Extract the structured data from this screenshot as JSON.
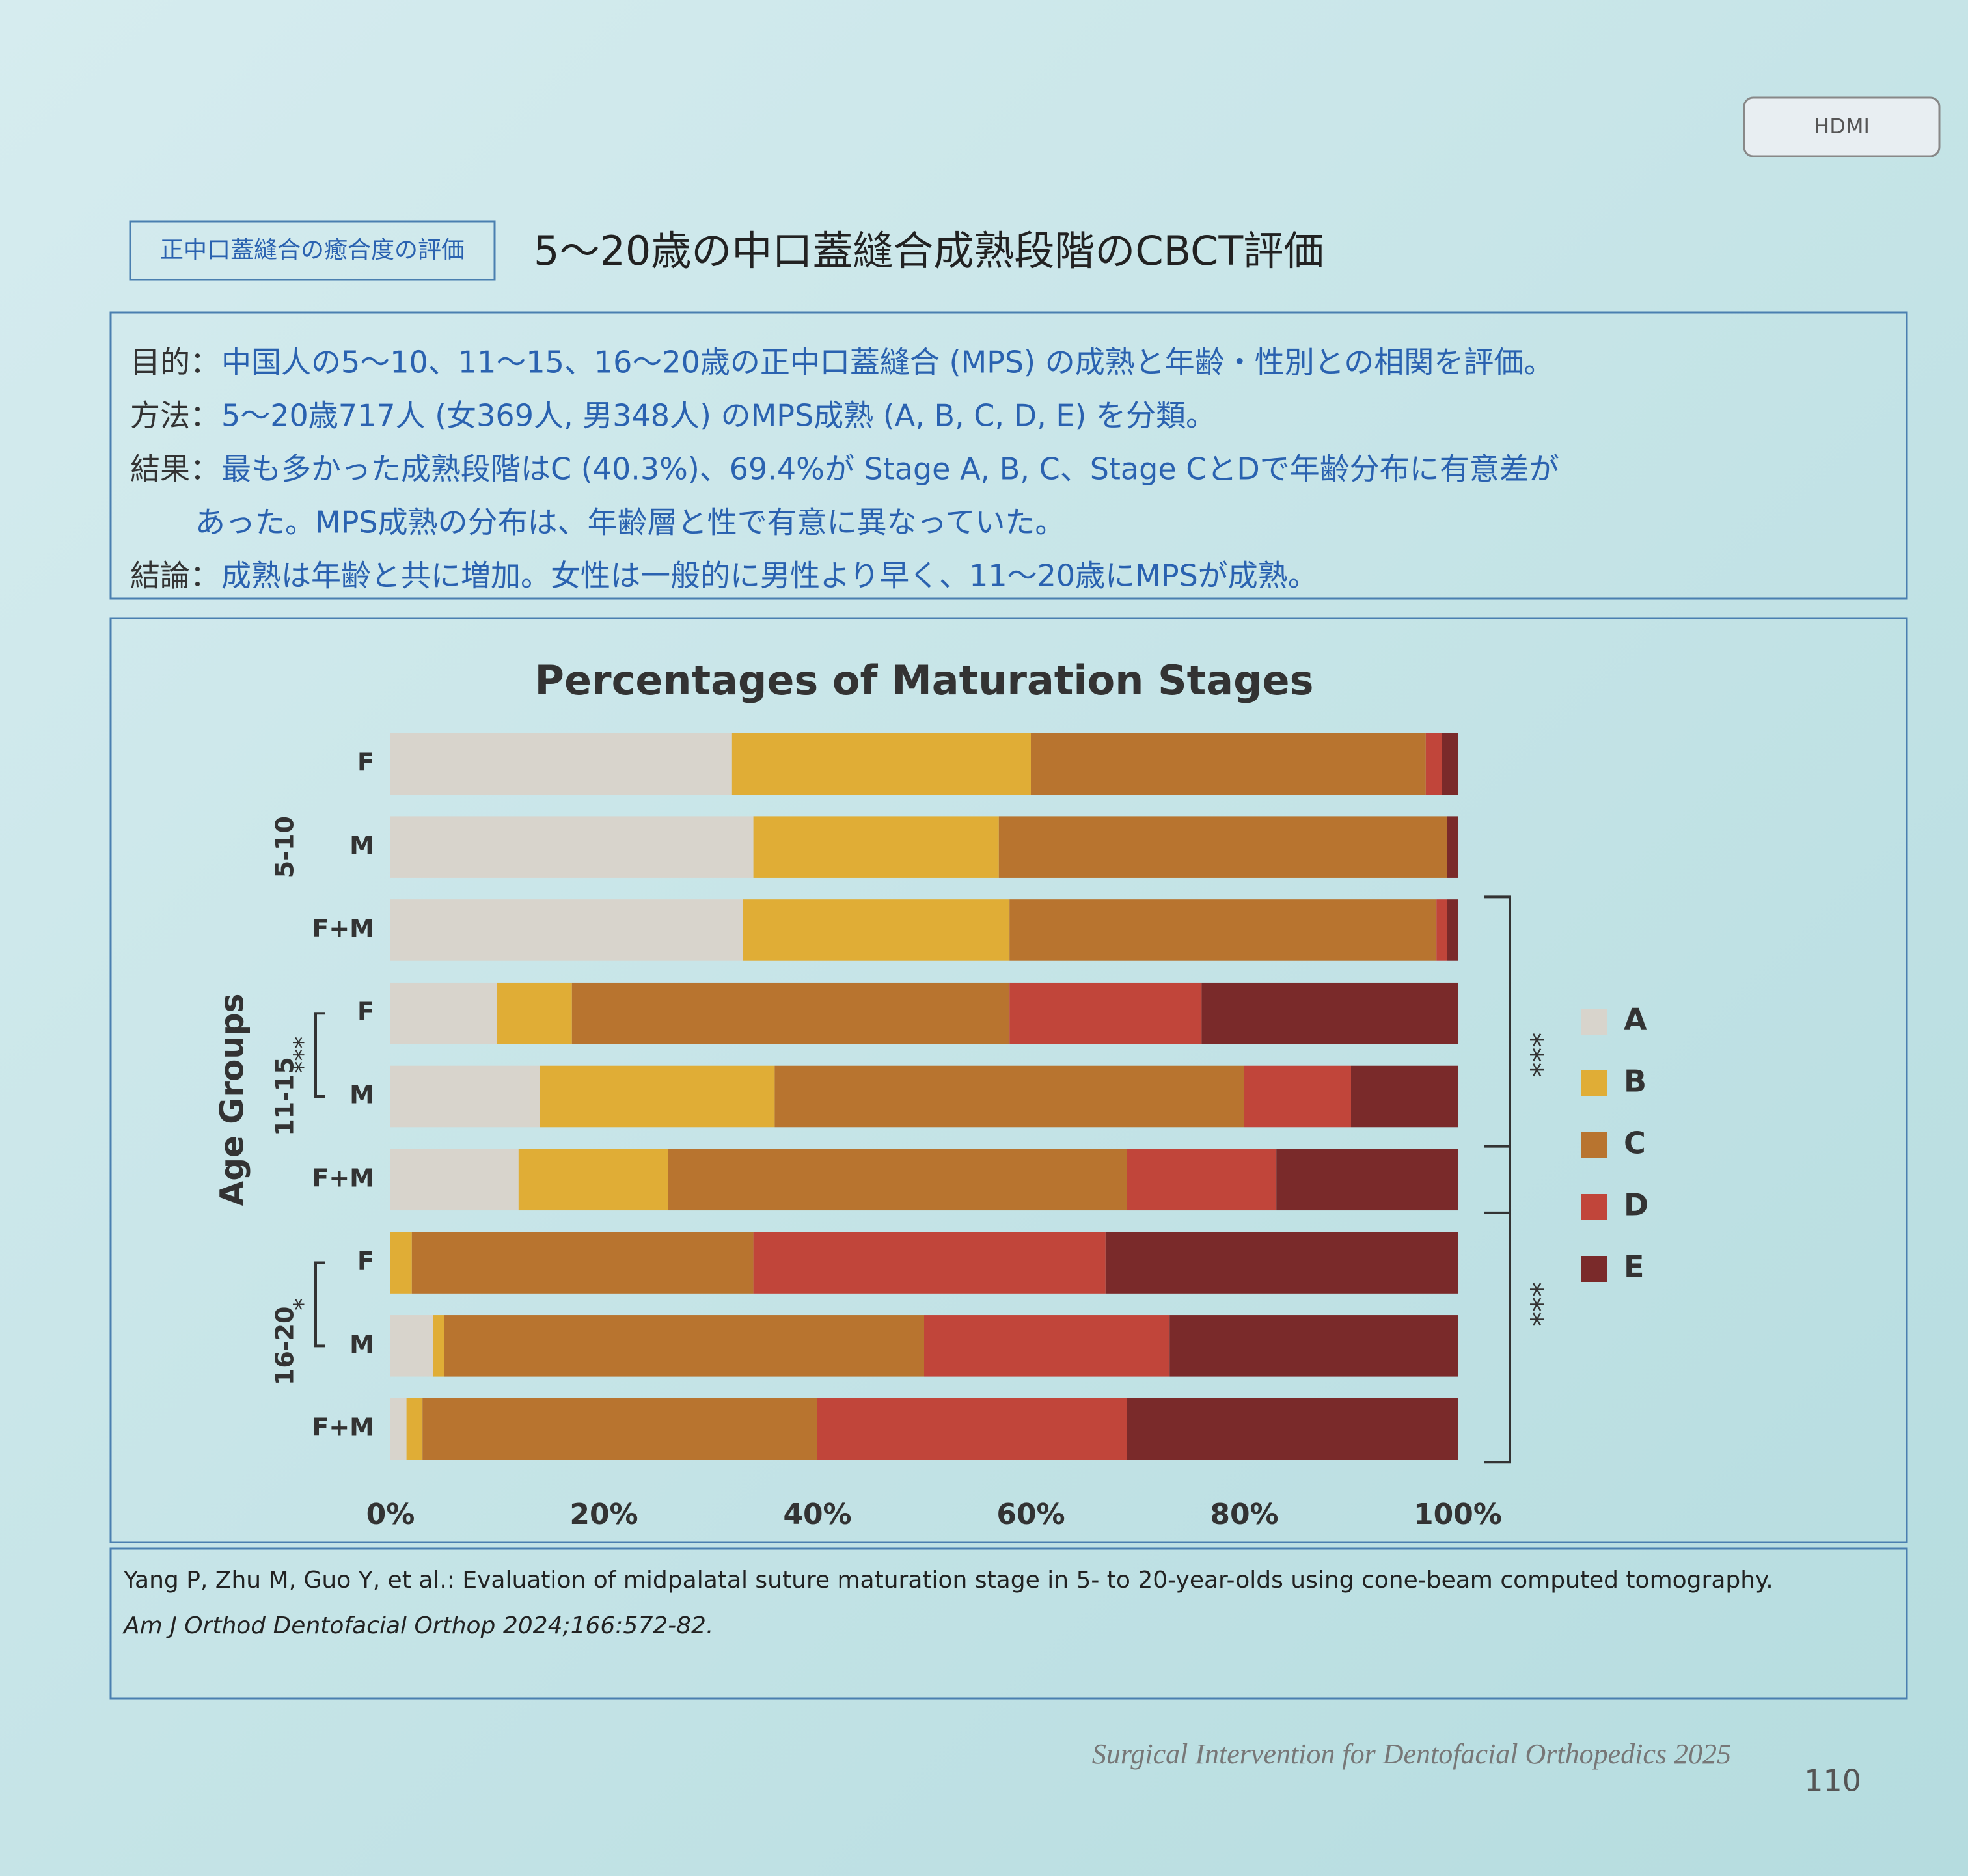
{
  "slide": {
    "device_label": "HDMI",
    "tag": "正中口蓋縫合の癒合度の評価",
    "heading": "5～20歳の中口蓋縫合成熟段階のCBCT評価",
    "summary": [
      {
        "label": "目的：",
        "text": "中国人の5～10、11～15、16～20歳の正中口蓋縫合 (MPS) の成熟と年齢・性別との相関を評価。"
      },
      {
        "label": "方法：",
        "text": "5～20歳717人 (女369人, 男348人) のMPS成熟 (A, B, C, D, E) を分類。"
      },
      {
        "label": "結果：",
        "text": "最も多かった成熟段階はC (40.3%)、69.4%が Stage A, B, C、Stage CとDで年齢分布に有意差が"
      },
      {
        "text": "あった。MPS成熟の分布は、年齢層と性で有意に異なっていた。"
      },
      {
        "label": "結論：",
        "text": "成熟は年齢と共に増加。女性は一般的に男性より早く、11～20歳にMPSが成熟。"
      }
    ],
    "citation": "Yang P, Zhu M, Guo Y, et al.: Evaluation of midpalatal suture maturation stage in 5- to 20-year-olds using cone-beam computed tomography.",
    "journal": "Am J Orthod Dentofacial Orthop 2024;166:572-82.",
    "footer": "Surgical Intervention for Dentofacial Orthopedics 2025",
    "page_number": "110"
  },
  "chart_data": {
    "type": "stacked_bar_horizontal",
    "title": "Percentages of Maturation Stages",
    "y_label": "Age Groups",
    "groups": [
      {
        "name": "5-10",
        "categories": [
          "F",
          "M",
          "F+M"
        ]
      },
      {
        "name": "11-15",
        "categories": [
          "F",
          "M",
          "F+M"
        ]
      },
      {
        "name": "16-20",
        "categories": [
          "F",
          "M",
          "F+M"
        ]
      }
    ],
    "series": [
      {
        "name": "A",
        "color": "#d8d4cc",
        "values": [
          32,
          34,
          33,
          10,
          14,
          12,
          0,
          4,
          1.5
        ]
      },
      {
        "name": "B",
        "color": "#e0ad36",
        "values": [
          28,
          23,
          25,
          7,
          22,
          14,
          2,
          1,
          1.5
        ]
      },
      {
        "name": "C",
        "color": "#b8742f",
        "values": [
          37,
          42,
          40,
          41,
          44,
          43,
          32,
          45,
          37
        ]
      },
      {
        "name": "D",
        "color": "#c1453a",
        "values": [
          1.5,
          0,
          1,
          18,
          10,
          14,
          33,
          23,
          29
        ]
      },
      {
        "name": "E",
        "color": "#7a2a2a",
        "values": [
          1.5,
          1,
          1,
          24,
          10,
          17,
          33,
          27,
          31
        ]
      }
    ],
    "annotations": [
      "***",
      "*",
      "***",
      "***"
    ],
    "xlim": [
      0,
      100
    ],
    "xticks": [
      {
        "value": 0,
        "label": "0%"
      },
      {
        "value": 20,
        "label": "20%"
      },
      {
        "value": 40,
        "label": "40%"
      },
      {
        "value": 60,
        "label": "60%"
      },
      {
        "value": 80,
        "label": "80%"
      },
      {
        "value": 100,
        "label": "100%"
      }
    ],
    "grid": false,
    "legend": "right"
  }
}
